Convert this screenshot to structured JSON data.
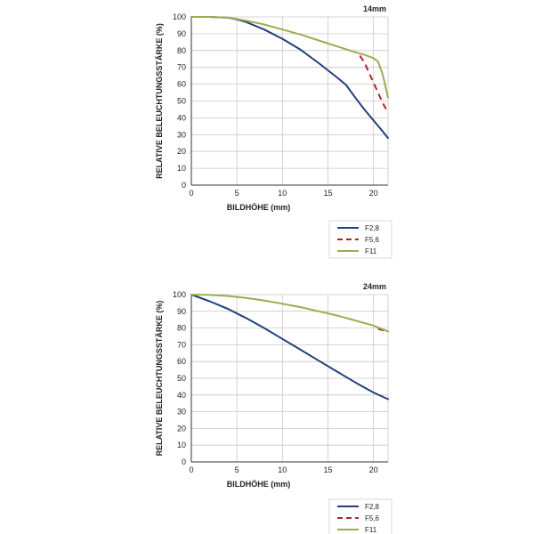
{
  "chart_data": [
    {
      "type": "line",
      "title": "14mm",
      "xlabel": "BILDHÖHE (mm)",
      "ylabel": "RELATIVE BELEUCHTUNGSSTÄRKE (%)",
      "xlim": [
        0,
        21.6
      ],
      "ylim": [
        0,
        100
      ],
      "xticks": [
        0,
        5,
        10,
        15,
        20
      ],
      "yticks": [
        0,
        10,
        20,
        30,
        40,
        50,
        60,
        70,
        80,
        90,
        100
      ],
      "grid": true,
      "legend_position": "below-right",
      "series": [
        {
          "name": "F2,8",
          "color": "#24407a",
          "dash": "solid",
          "x": [
            0,
            2,
            4,
            5,
            6,
            8,
            10,
            12,
            14,
            16,
            17,
            18,
            19,
            20,
            21,
            21.6
          ],
          "y": [
            100,
            100,
            99.5,
            98.5,
            97,
            92.5,
            87,
            80.5,
            72.5,
            64,
            59.5,
            52,
            45,
            38.5,
            32,
            28
          ]
        },
        {
          "name": "F5,6",
          "color": "#b22222",
          "dash": "dashed",
          "x": [
            18.5,
            19,
            19.5,
            20,
            20.5,
            21,
            21.6
          ],
          "y": [
            77,
            73,
            67,
            61,
            55,
            49,
            43
          ]
        },
        {
          "name": "F11",
          "color": "#9bad4e",
          "dash": "solid",
          "x": [
            0,
            2,
            4,
            5,
            6,
            8,
            10,
            12,
            14,
            16,
            18,
            19,
            20,
            20.5,
            21,
            21.6
          ],
          "y": [
            100,
            100,
            99.5,
            98.8,
            97.8,
            95.5,
            92.5,
            89.5,
            86,
            82.5,
            79,
            77.5,
            75.5,
            73.5,
            66,
            52
          ]
        }
      ]
    },
    {
      "type": "line",
      "title": "24mm",
      "xlabel": "BILDHÖHE (mm)",
      "ylabel": "RELATIVE BELEUCHTUNGSSTÄRKE (%)",
      "xlim": [
        0,
        21.6
      ],
      "ylim": [
        0,
        100
      ],
      "xticks": [
        0,
        5,
        10,
        15,
        20
      ],
      "yticks": [
        0,
        10,
        20,
        30,
        40,
        50,
        60,
        70,
        80,
        90,
        100
      ],
      "grid": true,
      "legend_position": "below-right",
      "series": [
        {
          "name": "F2,8",
          "color": "#24407a",
          "dash": "solid",
          "x": [
            0,
            2,
            4,
            6,
            8,
            10,
            12,
            14,
            16,
            18,
            20,
            21.6
          ],
          "y": [
            100,
            96,
            91.5,
            86,
            80,
            73.5,
            67,
            60.5,
            54,
            47.5,
            41.5,
            37.5
          ]
        },
        {
          "name": "F5,6",
          "color": "#b22222",
          "dash": "dashed",
          "x": [
            20.5,
            21,
            21.6
          ],
          "y": [
            79.5,
            78.8,
            78
          ]
        },
        {
          "name": "F11",
          "color": "#9bad4e",
          "dash": "solid",
          "x": [
            0,
            2,
            4,
            6,
            8,
            10,
            12,
            14,
            16,
            18,
            20,
            21.6
          ],
          "y": [
            100,
            99.8,
            99.2,
            98,
            96.5,
            94.5,
            92.5,
            90,
            87.5,
            84.5,
            81.5,
            78
          ]
        }
      ]
    }
  ]
}
